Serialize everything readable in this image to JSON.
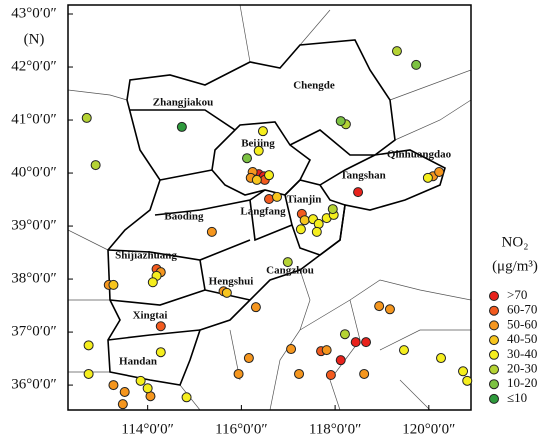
{
  "chart_data": {
    "type": "scatter",
    "y_label": "(N)",
    "legend_title": "NO₂",
    "legend_unit": "(μg/m³)",
    "xlim": [
      112.3,
      120.9
    ],
    "ylim": [
      35.53,
      43.17
    ],
    "xticks": [
      {
        "value": 114,
        "label": "114°0′0″"
      },
      {
        "value": 116,
        "label": "116°0′0″"
      },
      {
        "value": 118,
        "label": "118°0′0″"
      },
      {
        "value": 120,
        "label": "120°0′0″"
      }
    ],
    "yticks": [
      {
        "value": 36,
        "label": "36°0′0″"
      },
      {
        "value": 37,
        "label": "37°0′0″"
      },
      {
        "value": 38,
        "label": "38°0′0″"
      },
      {
        "value": 39,
        "label": "39°0′0″"
      },
      {
        "value": 40,
        "label": "40°0′0″"
      },
      {
        "value": 41,
        "label": "41°0′0″"
      },
      {
        "value": 42,
        "label": "42°0′0″"
      },
      {
        "value": 43,
        "label": "43°0′0″"
      }
    ],
    "cities": [
      "Zhangjiakou",
      "Chengde",
      "Beijing",
      "Qinhuangdao",
      "Tangshan",
      "Tianjin",
      "Langfang",
      "Baoding",
      "Shijiazhuang",
      "Cangzhou",
      "Hengshui",
      "Xingtai",
      "Handan"
    ],
    "series": [
      {
        "name": ">70",
        "color": "#e8221c",
        "x": [
          116.37,
          116.48,
          118.49,
          118.44,
          118.66,
          118.12
        ],
        "y": [
          39.98,
          39.94,
          39.64,
          36.81,
          36.81,
          36.47
        ]
      },
      {
        "name": "60-70",
        "color": "#f25a1e",
        "x": [
          116.5,
          116.59,
          117.29,
          114.19,
          114.28,
          117.7,
          117.91
        ],
        "y": [
          39.87,
          39.51,
          39.23,
          38.19,
          37.11,
          36.64,
          36.19
        ]
      },
      {
        "name": "50-60",
        "color": "#f5961e",
        "x": [
          116.24,
          116.2,
          120.09,
          120.22,
          115.37,
          114.28,
          113.17,
          115.62,
          116.31,
          118.94,
          119.17,
          117.82,
          117.06,
          116.16,
          115.94,
          117.23,
          118.62,
          113.27,
          113.51,
          113.47,
          114.06
        ],
        "y": [
          40.02,
          39.91,
          39.94,
          40.02,
          38.89,
          38.13,
          37.89,
          37.77,
          37.47,
          37.49,
          37.43,
          36.66,
          36.68,
          36.51,
          36.21,
          36.21,
          36.21,
          36.0,
          35.87,
          35.64,
          35.79
        ]
      },
      {
        "name": "40-50",
        "color": "#f7c51e",
        "x": [
          116.33,
          116.76,
          113.27,
          115.69,
          117.35
        ],
        "y": [
          39.87,
          39.55,
          37.89,
          37.74,
          39.11
        ]
      },
      {
        "name": "30-40",
        "color": "#f5ee1e",
        "x": [
          116.46,
          116.37,
          116.59,
          117.53,
          117.65,
          117.27,
          117.61,
          117.82,
          117.97,
          119.98,
          114.19,
          114.11,
          114.28,
          112.74,
          119.47,
          120.26,
          113.85,
          114.0,
          114.83,
          112.74,
          120.73,
          120.82
        ],
        "y": [
          40.79,
          40.42,
          39.96,
          39.13,
          39.04,
          38.94,
          38.89,
          39.15,
          39.21,
          39.91,
          38.06,
          37.94,
          36.62,
          36.75,
          36.66,
          36.51,
          36.08,
          35.94,
          35.77,
          36.21,
          36.26,
          36.08
        ]
      },
      {
        "name": "20-30",
        "color": "#b5d334",
        "x": [
          112.7,
          112.89,
          119.32,
          118.23,
          117.95,
          116.99,
          118.21
        ],
        "y": [
          41.04,
          40.15,
          42.3,
          40.92,
          39.32,
          38.32,
          36.96
        ]
      },
      {
        "name": "10-20",
        "color": "#7cc242",
        "x": [
          119.73,
          118.12,
          116.12
        ],
        "y": [
          42.04,
          40.98,
          40.28
        ]
      },
      {
        "name": "≤10",
        "color": "#2e9a3c",
        "x": [
          114.73
        ],
        "y": [
          40.87
        ]
      }
    ]
  }
}
